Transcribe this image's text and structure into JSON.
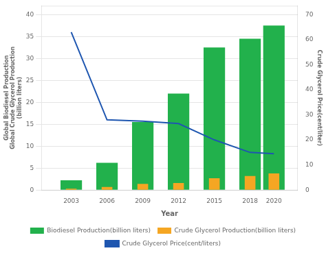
{
  "chart_data": {
    "type": "bar",
    "x": [
      2003,
      2006,
      2009,
      2012,
      2015,
      2018,
      2020
    ],
    "series": [
      {
        "name": "Biodiesel Production(billion liters)",
        "color": "#22b14c",
        "values": [
          2.2,
          6.2,
          15.5,
          22.0,
          32.5,
          34.5,
          37.5
        ]
      },
      {
        "name": "Crude Glycerol Production(billion liters)",
        "color": "#f5a623",
        "values": [
          0.3,
          0.7,
          1.4,
          1.6,
          2.7,
          3.2,
          3.8
        ]
      },
      {
        "name": "Crude Glycerol Price(cent/liters)",
        "type": "line",
        "color": "#1e56b0",
        "axis": "y2",
        "values": [
          63.0,
          28.0,
          27.5,
          26.5,
          20.0,
          15.0,
          14.5
        ]
      }
    ],
    "xlabel": "Year",
    "ylabel": "Global Biodiesel Production\nGlobal Crude Glycerol Production\n(billion liters)",
    "y2label": "Crude Glycerol Price(cent/liter)",
    "xlim": [
      2000.5,
      2022
    ],
    "xticks": [
      2003,
      2006,
      2009,
      2012,
      2015,
      2018,
      2020
    ],
    "ylim": [
      0,
      42
    ],
    "yticks": [
      0,
      5,
      10,
      15,
      20,
      25,
      30,
      35,
      40
    ],
    "y2lim": [
      0,
      73.5
    ],
    "y2ticks": [
      0,
      10,
      20,
      30,
      40,
      50,
      60,
      70
    ],
    "grid": true,
    "legend": "bottom"
  }
}
